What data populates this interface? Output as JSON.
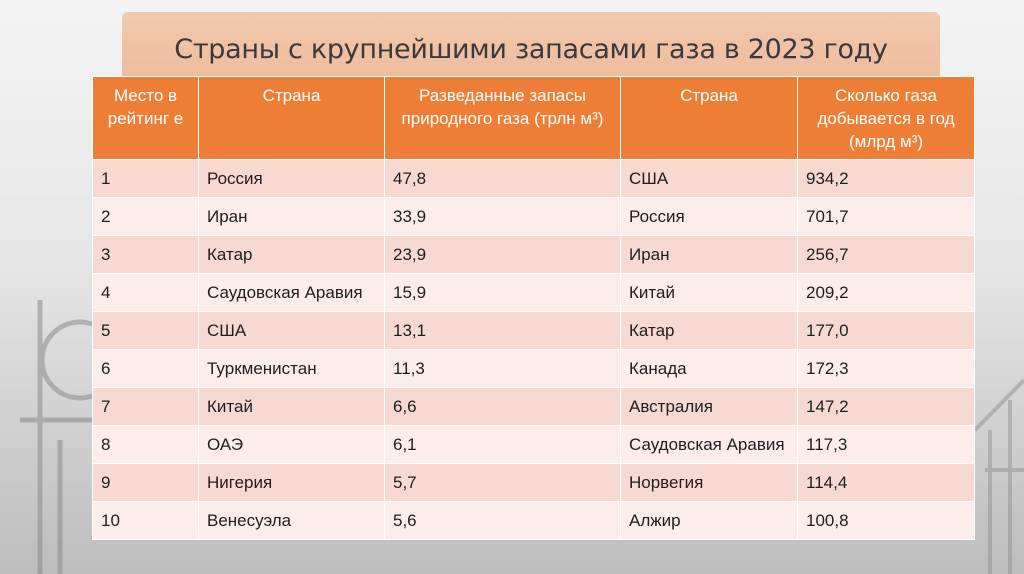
{
  "slide": {
    "title": "Страны с крупнейшими запасами газа в 2023 году"
  },
  "colors": {
    "header_bg": "#ee7d36",
    "row_odd": "#f8d9d1",
    "row_even": "#fcedea",
    "title_band": "#ecb796"
  },
  "table": {
    "headers": [
      "Место в рейтинг е",
      "Страна",
      "Разведанные запасы природного газа (трлн м³)",
      "Страна",
      "Сколько газа добывается в год (млрд м³)"
    ],
    "rows": [
      [
        "1",
        "Россия",
        "47,8",
        "США",
        "934,2"
      ],
      [
        "2",
        "Иран",
        "33,9",
        "Россия",
        "701,7"
      ],
      [
        "3",
        "Катар",
        "23,9",
        "Иран",
        "256,7"
      ],
      [
        "4",
        "Саудовская Аравия",
        "15,9",
        "Китай",
        "209,2"
      ],
      [
        "5",
        "США",
        "13,1",
        "Катар",
        "177,0"
      ],
      [
        "6",
        "Туркменистан",
        "11,3",
        "Канада",
        "172,3"
      ],
      [
        "7",
        "Китай",
        "6,6",
        "Австралия",
        "147,2"
      ],
      [
        "8",
        "ОАЭ",
        "6,1",
        "Саудовская Аравия",
        "117,3"
      ],
      [
        "9",
        "Нигерия",
        "5,7",
        "Норвегия",
        "114,4"
      ],
      [
        "10",
        "Венесуэла",
        "5,6",
        "Алжир",
        "100,8"
      ]
    ]
  }
}
